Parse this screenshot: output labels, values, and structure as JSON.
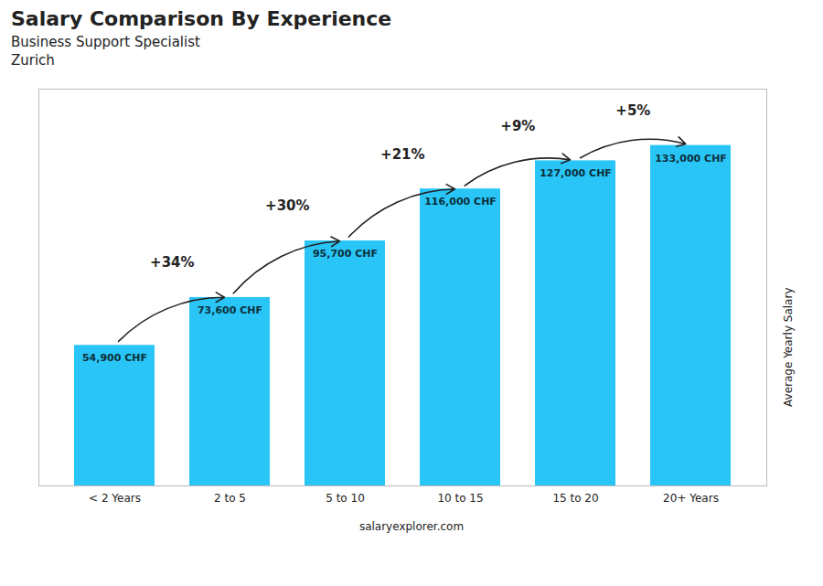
{
  "chart_data": {
    "type": "bar",
    "title": "Salary Comparison By Experience",
    "subtitle": [
      "Business Support Specialist",
      "Zurich"
    ],
    "categories": [
      "< 2 Years",
      "2 to 5",
      "5 to 10",
      "10 to 15",
      "15 to 20",
      "20+ Years"
    ],
    "values": [
      54900,
      73600,
      95700,
      116000,
      127000,
      133000
    ],
    "value_labels": [
      "54,900 CHF",
      "73,600 CHF",
      "95,700 CHF",
      "116,000 CHF",
      "127,000 CHF",
      "133,000 CHF"
    ],
    "data_labels": true,
    "color": "#29c5f6",
    "ylabel": "Average Yearly Salary",
    "ylim": [
      0,
      155000
    ],
    "tick_labels": "x",
    "annotations": [
      "+34%",
      "+30%",
      "+21%",
      "+9%",
      "+5%"
    ],
    "caption": "salaryexplorer.com"
  }
}
